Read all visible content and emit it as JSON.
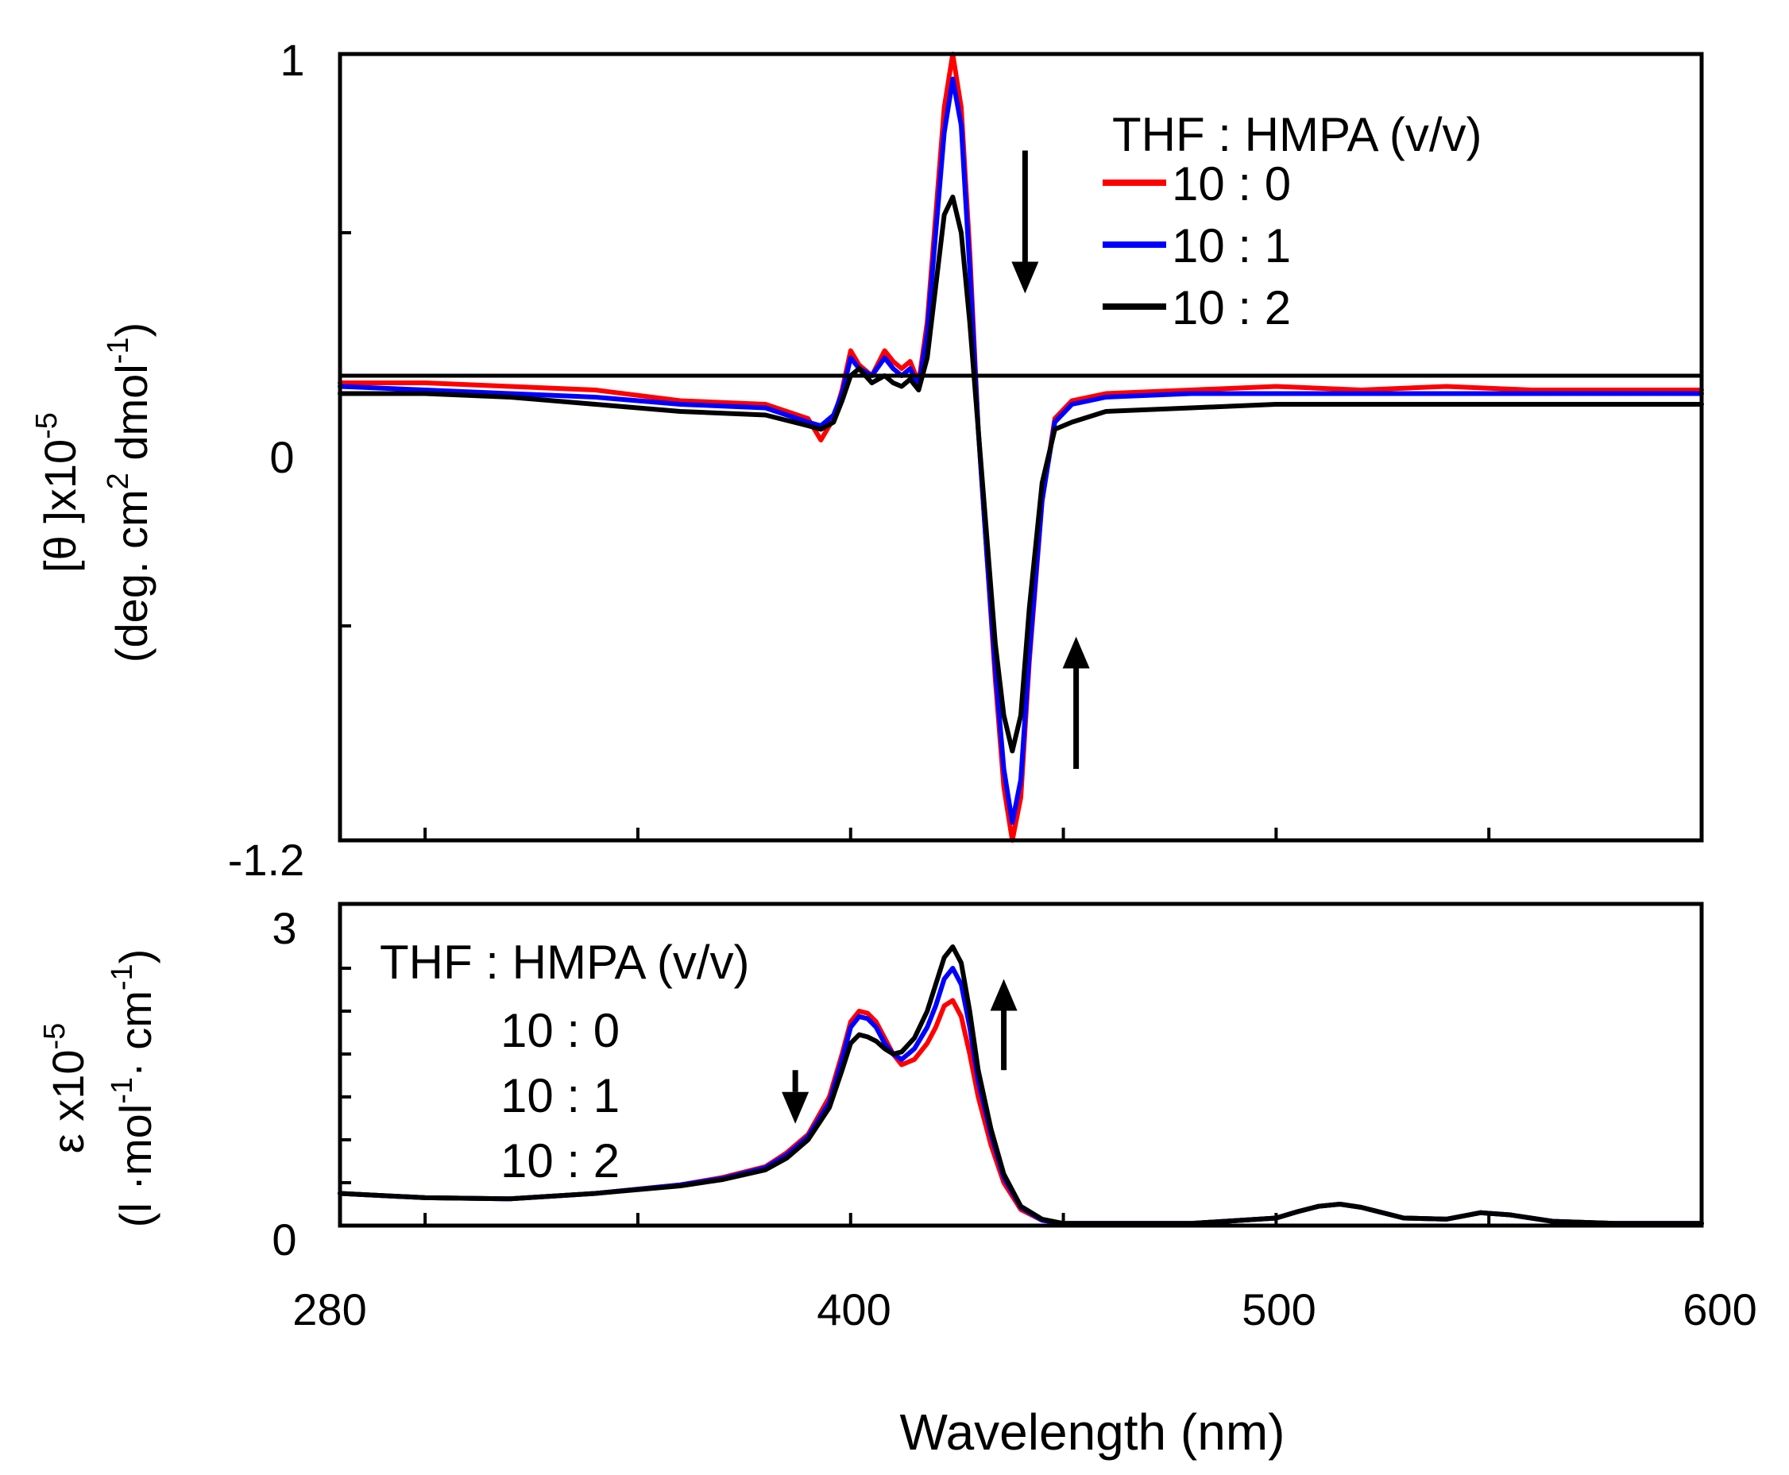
{
  "chart_data": [
    {
      "type": "line",
      "panel": "top",
      "title": "",
      "xlabel": "",
      "ylabel_line1": "[θ ]x10",
      "ylabel_exp1": "-5",
      "ylabel_line2_a": "(deg. cm",
      "ylabel_line2_exp_a": "2",
      "ylabel_line2_b": " dmol",
      "ylabel_line2_exp_b": "-1",
      "ylabel_line2_c": ")",
      "xlim": [
        280,
        600
      ],
      "ylim": [
        -1.2,
        1
      ],
      "yticks": [
        {
          "value": 1,
          "label": "1"
        },
        {
          "value": 0,
          "label": "0"
        },
        {
          "value": -1.2,
          "label": "-1.2"
        }
      ],
      "minor_yticks": [
        0.5,
        -0.6
      ],
      "baseline_y": 0.1,
      "legend": {
        "title": "THF : HMPA (v/v)",
        "placement": "top-right",
        "entries": [
          "10 : 0",
          "10 : 1",
          "10 : 2"
        ]
      },
      "annotations": [
        {
          "type": "arrow-down",
          "x": 441,
          "y_from": 0.73,
          "y_to": 0.33
        },
        {
          "type": "arrow-up",
          "x": 453,
          "y_from": -1.0,
          "y_to": -0.63
        }
      ],
      "series": [
        {
          "name": "10 : 0",
          "color": "#ff0000",
          "x": [
            280,
            300,
            320,
            340,
            360,
            380,
            390,
            393,
            396,
            398,
            400,
            402,
            405,
            408,
            410,
            412,
            414,
            416,
            418,
            420,
            422,
            424,
            426,
            428,
            430,
            432,
            434,
            436,
            438,
            440,
            442,
            445,
            448,
            452,
            460,
            480,
            500,
            520,
            540,
            560,
            580,
            600
          ],
          "y": [
            0.08,
            0.08,
            0.07,
            0.06,
            0.03,
            0.02,
            -0.02,
            -0.08,
            -0.02,
            0.06,
            0.17,
            0.13,
            0.1,
            0.17,
            0.14,
            0.12,
            0.14,
            0.08,
            0.25,
            0.55,
            0.85,
            1.0,
            0.85,
            0.45,
            -0.05,
            -0.4,
            -0.75,
            -1.05,
            -1.2,
            -1.08,
            -0.7,
            -0.25,
            -0.02,
            0.03,
            0.05,
            0.06,
            0.07,
            0.06,
            0.07,
            0.06,
            0.06,
            0.06
          ]
        },
        {
          "name": "10 : 1",
          "color": "#0000ff",
          "x": [
            280,
            300,
            320,
            340,
            360,
            380,
            390,
            393,
            396,
            398,
            400,
            402,
            405,
            408,
            410,
            412,
            414,
            416,
            418,
            420,
            422,
            424,
            426,
            428,
            430,
            432,
            434,
            436,
            438,
            440,
            442,
            445,
            448,
            452,
            460,
            480,
            500,
            520,
            540,
            560,
            580,
            600
          ],
          "y": [
            0.07,
            0.06,
            0.05,
            0.04,
            0.02,
            0.01,
            -0.03,
            -0.04,
            -0.01,
            0.05,
            0.15,
            0.12,
            0.1,
            0.15,
            0.12,
            0.1,
            0.12,
            0.07,
            0.22,
            0.5,
            0.78,
            0.93,
            0.8,
            0.4,
            -0.05,
            -0.4,
            -0.72,
            -1.0,
            -1.15,
            -1.03,
            -0.68,
            -0.25,
            -0.03,
            0.02,
            0.04,
            0.05,
            0.05,
            0.05,
            0.05,
            0.05,
            0.05,
            0.05
          ]
        },
        {
          "name": "10 : 2",
          "color": "#000000",
          "x": [
            280,
            300,
            320,
            340,
            360,
            380,
            390,
            393,
            396,
            398,
            400,
            402,
            405,
            408,
            410,
            412,
            414,
            416,
            418,
            420,
            422,
            424,
            426,
            428,
            430,
            432,
            434,
            436,
            438,
            440,
            442,
            445,
            448,
            452,
            460,
            480,
            500,
            520,
            540,
            560,
            580,
            600
          ],
          "y": [
            0.05,
            0.05,
            0.04,
            0.02,
            0.0,
            -0.01,
            -0.04,
            -0.05,
            -0.03,
            0.03,
            0.1,
            0.12,
            0.08,
            0.1,
            0.08,
            0.07,
            0.09,
            0.06,
            0.15,
            0.35,
            0.55,
            0.6,
            0.5,
            0.25,
            -0.05,
            -0.35,
            -0.65,
            -0.85,
            -0.95,
            -0.85,
            -0.55,
            -0.2,
            -0.05,
            -0.03,
            0.0,
            0.01,
            0.02,
            0.02,
            0.02,
            0.02,
            0.02,
            0.02
          ]
        }
      ]
    },
    {
      "type": "line",
      "panel": "bottom",
      "title": "",
      "xlabel": "Wavelength (nm)",
      "ylabel_line1": "ε x10",
      "ylabel_exp1": "-5",
      "ylabel_line2_a": "(l ·mol",
      "ylabel_line2_exp_a": "-1",
      "ylabel_line2_b": "· cm",
      "ylabel_line2_exp_b": "-1",
      "ylabel_line2_c": ")",
      "xlim": [
        280,
        600
      ],
      "ylim": [
        0,
        3
      ],
      "xticks": [
        {
          "value": 280,
          "label": "280"
        },
        {
          "value": 400,
          "label": "400"
        },
        {
          "value": 500,
          "label": "500"
        },
        {
          "value": 600,
          "label": "600"
        }
      ],
      "minor_xticks": [
        300,
        350,
        450,
        550
      ],
      "yticks": [
        {
          "value": 3,
          "label": "3"
        },
        {
          "value": 0,
          "label": "0"
        }
      ],
      "minor_yticks": [
        0.4,
        0.8,
        1.2,
        1.6,
        2.0,
        2.4
      ],
      "legend": {
        "title": "THF : HMPA (v/v)",
        "placement": "top-left",
        "entries": [
          "10 : 0",
          "10 : 1",
          "10 : 2"
        ]
      },
      "annotations": [
        {
          "type": "arrow-down",
          "x": 387,
          "y_from": 1.45,
          "y_to": 0.95
        },
        {
          "type": "arrow-up",
          "x": 436,
          "y_from": 1.45,
          "y_to": 2.3
        }
      ],
      "series": [
        {
          "name": "10 : 0",
          "color": "#ff0000",
          "x": [
            280,
            290,
            300,
            320,
            340,
            360,
            370,
            380,
            385,
            390,
            395,
            398,
            400,
            402,
            404,
            406,
            408,
            410,
            412,
            415,
            418,
            420,
            422,
            424,
            426,
            428,
            430,
            433,
            436,
            440,
            445,
            450,
            460,
            480,
            500,
            505,
            510,
            515,
            520,
            530,
            540,
            548,
            555,
            565,
            580,
            600
          ],
          "y": [
            0.3,
            0.28,
            0.26,
            0.25,
            0.3,
            0.38,
            0.45,
            0.55,
            0.68,
            0.85,
            1.2,
            1.6,
            1.9,
            2.0,
            1.98,
            1.9,
            1.75,
            1.6,
            1.5,
            1.55,
            1.7,
            1.85,
            2.05,
            2.1,
            1.95,
            1.6,
            1.2,
            0.75,
            0.4,
            0.15,
            0.05,
            0.02,
            0.02,
            0.02,
            0.07,
            0.13,
            0.18,
            0.2,
            0.17,
            0.07,
            0.06,
            0.12,
            0.1,
            0.04,
            0.02,
            0.02
          ]
        },
        {
          "name": "10 : 1",
          "color": "#0000ff",
          "x": [
            280,
            290,
            300,
            320,
            340,
            360,
            370,
            380,
            385,
            390,
            395,
            398,
            400,
            402,
            404,
            406,
            408,
            410,
            412,
            415,
            418,
            420,
            422,
            424,
            426,
            428,
            430,
            433,
            436,
            440,
            445,
            450,
            460,
            480,
            500,
            505,
            510,
            515,
            520,
            530,
            540,
            548,
            555,
            565,
            580,
            600
          ],
          "y": [
            0.3,
            0.28,
            0.26,
            0.25,
            0.3,
            0.38,
            0.44,
            0.54,
            0.66,
            0.83,
            1.15,
            1.55,
            1.85,
            1.95,
            1.93,
            1.85,
            1.7,
            1.6,
            1.55,
            1.65,
            1.85,
            2.05,
            2.3,
            2.4,
            2.25,
            1.85,
            1.35,
            0.85,
            0.45,
            0.17,
            0.05,
            0.02,
            0.02,
            0.02,
            0.07,
            0.13,
            0.18,
            0.2,
            0.17,
            0.07,
            0.06,
            0.12,
            0.1,
            0.04,
            0.02,
            0.02
          ]
        },
        {
          "name": "10 : 2",
          "color": "#000000",
          "x": [
            280,
            290,
            300,
            320,
            340,
            360,
            370,
            380,
            385,
            390,
            395,
            398,
            400,
            402,
            404,
            406,
            408,
            410,
            412,
            415,
            418,
            420,
            422,
            424,
            426,
            428,
            430,
            433,
            436,
            440,
            445,
            450,
            460,
            480,
            500,
            505,
            510,
            515,
            520,
            530,
            540,
            548,
            555,
            565,
            580,
            600
          ],
          "y": [
            0.3,
            0.28,
            0.26,
            0.25,
            0.3,
            0.37,
            0.43,
            0.52,
            0.63,
            0.8,
            1.1,
            1.45,
            1.7,
            1.78,
            1.76,
            1.72,
            1.65,
            1.6,
            1.62,
            1.75,
            2.0,
            2.25,
            2.5,
            2.6,
            2.45,
            2.0,
            1.45,
            0.9,
            0.48,
            0.18,
            0.06,
            0.02,
            0.02,
            0.02,
            0.07,
            0.13,
            0.18,
            0.2,
            0.17,
            0.07,
            0.06,
            0.12,
            0.1,
            0.04,
            0.02,
            0.02
          ]
        }
      ]
    }
  ]
}
